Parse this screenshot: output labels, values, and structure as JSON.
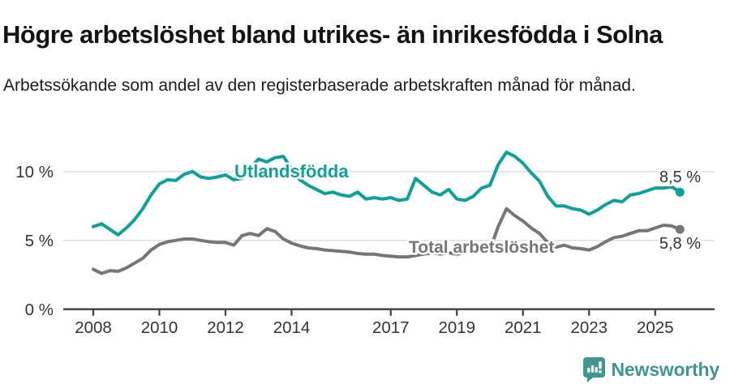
{
  "header": {
    "title": "Högre arbetslöshet bland utrikes- än inrikesfödda i Solna",
    "subtitle": "Arbetssökande som andel av den registerbaserade arbetskraften månad för månad."
  },
  "chart_data": {
    "type": "line",
    "title": "Högre arbetslöshet bland utrikes- än inrikesfödda i Solna",
    "xlabel": "",
    "ylabel": "",
    "unit": "%",
    "grid": "horizontal-light",
    "legend": "inline-series-labels",
    "xlim": [
      2007.1,
      2026.4
    ],
    "ylim": [
      0,
      11.8
    ],
    "yticks": [
      {
        "v": 0,
        "label": "0 %"
      },
      {
        "v": 5,
        "label": "5 %"
      },
      {
        "v": 10,
        "label": "10 %"
      }
    ],
    "xticks": [
      {
        "v": 2008,
        "label": "2008"
      },
      {
        "v": 2010,
        "label": "2010"
      },
      {
        "v": 2012,
        "label": "2012"
      },
      {
        "v": 2014,
        "label": "2014"
      },
      {
        "v": 2017,
        "label": "2017"
      },
      {
        "v": 2019,
        "label": "2019"
      },
      {
        "v": 2021,
        "label": "2021"
      },
      {
        "v": 2023,
        "label": "2023"
      },
      {
        "v": 2025,
        "label": "2025"
      }
    ],
    "x": [
      2008,
      2008.25,
      2008.5,
      2008.75,
      2009,
      2009.25,
      2009.5,
      2009.75,
      2010,
      2010.25,
      2010.5,
      2010.75,
      2011,
      2011.25,
      2011.5,
      2011.75,
      2012,
      2012.25,
      2012.5,
      2012.75,
      2013,
      2013.25,
      2013.5,
      2013.75,
      2014,
      2014.25,
      2014.5,
      2014.75,
      2015,
      2015.25,
      2015.5,
      2015.75,
      2016,
      2016.25,
      2016.5,
      2016.75,
      2017,
      2017.25,
      2017.5,
      2017.75,
      2018,
      2018.25,
      2018.5,
      2018.75,
      2019,
      2019.25,
      2019.5,
      2019.75,
      2020,
      2020.25,
      2020.5,
      2020.75,
      2021,
      2021.25,
      2021.5,
      2021.75,
      2022,
      2022.25,
      2022.5,
      2022.75,
      2023,
      2023.25,
      2023.5,
      2023.75,
      2024,
      2024.25,
      2024.5,
      2024.75,
      2025,
      2025.25,
      2025.5,
      2025.75
    ],
    "series": [
      {
        "name": "Utlandsfödda",
        "color": "#0ba298",
        "end_label": "8,5 %",
        "end_value": 8.5,
        "values": [
          6.0,
          6.2,
          5.8,
          5.4,
          5.9,
          6.5,
          7.3,
          8.3,
          9.1,
          9.4,
          9.35,
          9.8,
          10.0,
          9.6,
          9.5,
          9.6,
          9.75,
          9.4,
          9.5,
          10.3,
          10.9,
          10.7,
          11.0,
          11.1,
          10.2,
          9.4,
          9.0,
          8.7,
          8.4,
          8.5,
          8.3,
          8.2,
          8.5,
          8.0,
          8.1,
          8.0,
          8.1,
          7.9,
          8.0,
          9.5,
          9.0,
          8.5,
          8.3,
          8.7,
          8.0,
          7.9,
          8.2,
          8.8,
          9.0,
          10.5,
          11.4,
          11.1,
          10.6,
          9.9,
          9.3,
          8.2,
          7.5,
          7.5,
          7.3,
          7.2,
          6.9,
          7.2,
          7.6,
          7.9,
          7.8,
          8.3,
          8.4,
          8.6,
          8.8,
          8.8,
          8.9,
          8.5
        ]
      },
      {
        "name": "Total arbetslöshet",
        "color": "#767676",
        "end_label": "5,8 %",
        "end_value": 5.8,
        "values": [
          2.9,
          2.6,
          2.8,
          2.75,
          3.0,
          3.35,
          3.7,
          4.3,
          4.7,
          4.9,
          5.0,
          5.1,
          5.1,
          5.0,
          4.9,
          4.85,
          4.85,
          4.65,
          5.35,
          5.5,
          5.35,
          5.85,
          5.65,
          5.1,
          4.8,
          4.6,
          4.45,
          4.4,
          4.3,
          4.25,
          4.2,
          4.15,
          4.05,
          4.0,
          4.0,
          3.9,
          3.85,
          3.8,
          3.8,
          3.9,
          4.0,
          4.1,
          4.0,
          4.1,
          4.0,
          4.1,
          4.2,
          4.3,
          4.3,
          6.0,
          7.3,
          6.8,
          6.4,
          5.9,
          5.5,
          4.85,
          4.5,
          4.65,
          4.45,
          4.4,
          4.3,
          4.55,
          4.9,
          5.2,
          5.3,
          5.5,
          5.7,
          5.7,
          5.9,
          6.1,
          6.05,
          5.8
        ]
      }
    ]
  },
  "footer": {
    "brand": "Newsworthy",
    "brand_color": "#3f978f",
    "logo_icon": "bar-chart-speech-bubble-icon"
  }
}
